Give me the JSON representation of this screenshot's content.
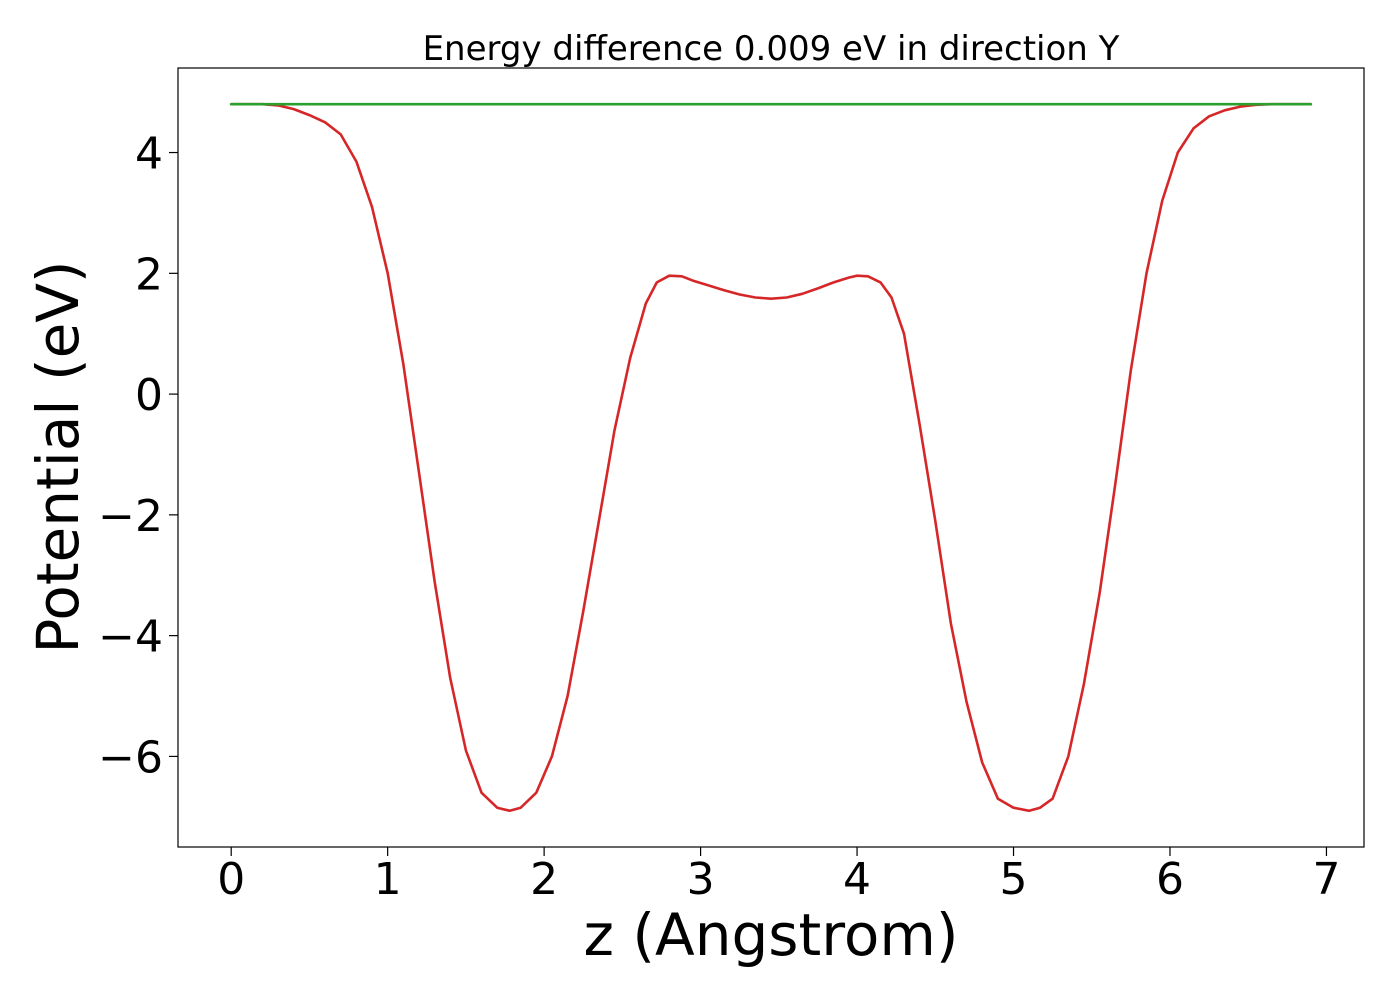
{
  "chart_data": {
    "type": "line",
    "title": "Energy difference 0.009 eV in direction Y",
    "xlabel": "z (Angstrom)",
    "ylabel": "Potential (eV)",
    "xlim": [
      -0.34,
      7.24
    ],
    "ylim": [
      -7.5,
      5.4
    ],
    "xticks": [
      0,
      1,
      2,
      3,
      4,
      5,
      6,
      7
    ],
    "xtick_labels": [
      "0",
      "1",
      "2",
      "3",
      "4",
      "5",
      "6",
      "7"
    ],
    "yticks": [
      -6,
      -4,
      -2,
      0,
      2,
      4
    ],
    "ytick_labels": [
      "−6",
      "−4",
      "−2",
      "0",
      "2",
      "4"
    ],
    "grid": false,
    "series": [
      {
        "color": "#d62728",
        "x": [
          0.0,
          0.1,
          0.2,
          0.3,
          0.4,
          0.5,
          0.6,
          0.7,
          0.8,
          0.9,
          1.0,
          1.1,
          1.2,
          1.3,
          1.4,
          1.5,
          1.6,
          1.7,
          1.78,
          1.85,
          1.95,
          2.05,
          2.15,
          2.25,
          2.35,
          2.45,
          2.55,
          2.65,
          2.72,
          2.8,
          2.88,
          2.95,
          3.05,
          3.15,
          3.25,
          3.35,
          3.45,
          3.55,
          3.65,
          3.75,
          3.85,
          3.95,
          4.0,
          4.07,
          4.15,
          4.22,
          4.3,
          4.4,
          4.5,
          4.6,
          4.7,
          4.8,
          4.9,
          5.0,
          5.1,
          5.17,
          5.25,
          5.35,
          5.45,
          5.55,
          5.65,
          5.75,
          5.85,
          5.95,
          6.05,
          6.15,
          6.25,
          6.35,
          6.45,
          6.55,
          6.65,
          6.75,
          6.9
        ],
        "y": [
          4.8,
          4.8,
          4.8,
          4.78,
          4.72,
          4.62,
          4.5,
          4.3,
          3.85,
          3.1,
          2.0,
          0.5,
          -1.3,
          -3.1,
          -4.7,
          -5.9,
          -6.6,
          -6.85,
          -6.9,
          -6.85,
          -6.6,
          -6.0,
          -5.0,
          -3.6,
          -2.1,
          -0.6,
          0.6,
          1.5,
          1.85,
          1.96,
          1.95,
          1.88,
          1.8,
          1.72,
          1.65,
          1.6,
          1.58,
          1.6,
          1.66,
          1.75,
          1.85,
          1.93,
          1.96,
          1.95,
          1.85,
          1.6,
          1.0,
          -0.5,
          -2.1,
          -3.8,
          -5.1,
          -6.1,
          -6.7,
          -6.85,
          -6.9,
          -6.85,
          -6.7,
          -6.0,
          -4.8,
          -3.3,
          -1.5,
          0.4,
          2.0,
          3.2,
          4.0,
          4.4,
          4.6,
          4.7,
          4.76,
          4.79,
          4.8,
          4.8,
          4.8
        ]
      },
      {
        "color": "#2ca02c",
        "x": [
          0.0,
          6.9
        ],
        "y": [
          4.8,
          4.8
        ]
      }
    ]
  }
}
